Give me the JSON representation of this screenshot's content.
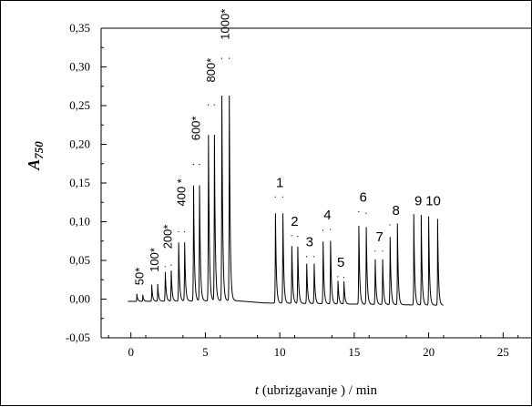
{
  "chart_data": {
    "type": "line",
    "xlabel_var": "t",
    "xlabel_rest": " (ubrizgavanje ) / min",
    "ylabel_var": "A",
    "ylabel_sub": "750",
    "xlim": [
      -2,
      27
    ],
    "ylim": [
      -0.05,
      0.35
    ],
    "x_ticks": [
      0,
      5,
      10,
      15,
      20,
      25
    ],
    "x_tick_labels": [
      "0",
      "5",
      "10",
      "15",
      "20",
      "25"
    ],
    "y_ticks": [
      -0.05,
      0.0,
      0.05,
      0.1,
      0.15,
      0.2,
      0.25,
      0.3,
      0.35
    ],
    "y_tick_labels": [
      "-0,05",
      "0,00",
      "0,05",
      "0,10",
      "0,15",
      "0,20",
      "0,25",
      "0,30",
      "0,35"
    ],
    "grid": false,
    "series": [
      {
        "line_color": "#000000",
        "baseline": [
          [
            -0.2,
            -0.003
          ],
          [
            7.0,
            -0.002
          ],
          [
            9.0,
            -0.005
          ],
          [
            21.0,
            -0.008
          ]
        ],
        "peaks": [
          {
            "x": 0.4,
            "y": 0.006
          },
          {
            "x": 0.8,
            "y": 0.005
          },
          {
            "x": 1.4,
            "y": 0.018
          },
          {
            "x": 1.8,
            "y": 0.019
          },
          {
            "x": 2.3,
            "y": 0.042
          },
          {
            "x": 2.7,
            "y": 0.044
          },
          {
            "x": 3.2,
            "y": 0.087
          },
          {
            "x": 3.6,
            "y": 0.087
          },
          {
            "x": 4.2,
            "y": 0.174
          },
          {
            "x": 4.6,
            "y": 0.174
          },
          {
            "x": 5.2,
            "y": 0.251
          },
          {
            "x": 5.6,
            "y": 0.251
          },
          {
            "x": 6.1,
            "y": 0.311
          },
          {
            "x": 6.6,
            "y": 0.311
          },
          {
            "x": 9.7,
            "y": 0.132
          },
          {
            "x": 10.2,
            "y": 0.132
          },
          {
            "x": 10.8,
            "y": 0.082
          },
          {
            "x": 11.2,
            "y": 0.081
          },
          {
            "x": 11.8,
            "y": 0.055
          },
          {
            "x": 12.3,
            "y": 0.055
          },
          {
            "x": 12.9,
            "y": 0.089
          },
          {
            "x": 13.4,
            "y": 0.09
          },
          {
            "x": 13.9,
            "y": 0.029
          },
          {
            "x": 14.3,
            "y": 0.028
          },
          {
            "x": 15.3,
            "y": 0.113
          },
          {
            "x": 15.8,
            "y": 0.111
          },
          {
            "x": 16.4,
            "y": 0.062
          },
          {
            "x": 16.9,
            "y": 0.062
          },
          {
            "x": 17.4,
            "y": 0.096
          },
          {
            "x": 17.9,
            "y": 0.097
          },
          {
            "x": 19.0,
            "y": 0.109
          },
          {
            "x": 19.5,
            "y": 0.108
          },
          {
            "x": 20.0,
            "y": 0.106
          },
          {
            "x": 20.6,
            "y": 0.103
          }
        ]
      }
    ],
    "annotations": [
      {
        "text": "50*",
        "x": 0.6,
        "y": 0.018,
        "rotated": true
      },
      {
        "text": "100*",
        "x": 1.6,
        "y": 0.035,
        "rotated": true
      },
      {
        "text": "200*",
        "x": 2.5,
        "y": 0.065,
        "rotated": true
      },
      {
        "text": "400 *",
        "x": 3.4,
        "y": 0.12,
        "rotated": true
      },
      {
        "text": "600*",
        "x": 4.4,
        "y": 0.205,
        "rotated": true
      },
      {
        "text": "800*",
        "x": 5.4,
        "y": 0.28,
        "rotated": true
      },
      {
        "text": "1000*",
        "x": 6.35,
        "y": 0.335,
        "rotated": true
      },
      {
        "text": "1",
        "x": 10.0,
        "y": 0.145,
        "rotated": false
      },
      {
        "text": "2",
        "x": 11.0,
        "y": 0.095,
        "rotated": false
      },
      {
        "text": "3",
        "x": 12.0,
        "y": 0.068,
        "rotated": false
      },
      {
        "text": "4",
        "x": 13.2,
        "y": 0.103,
        "rotated": false
      },
      {
        "text": "5",
        "x": 14.1,
        "y": 0.042,
        "rotated": false
      },
      {
        "text": "6",
        "x": 15.6,
        "y": 0.126,
        "rotated": false
      },
      {
        "text": "7",
        "x": 16.7,
        "y": 0.075,
        "rotated": false
      },
      {
        "text": "8",
        "x": 17.8,
        "y": 0.109,
        "rotated": false
      },
      {
        "text": "9",
        "x": 19.3,
        "y": 0.121,
        "rotated": false
      },
      {
        "text": "10",
        "x": 20.3,
        "y": 0.121,
        "rotated": false
      }
    ]
  }
}
